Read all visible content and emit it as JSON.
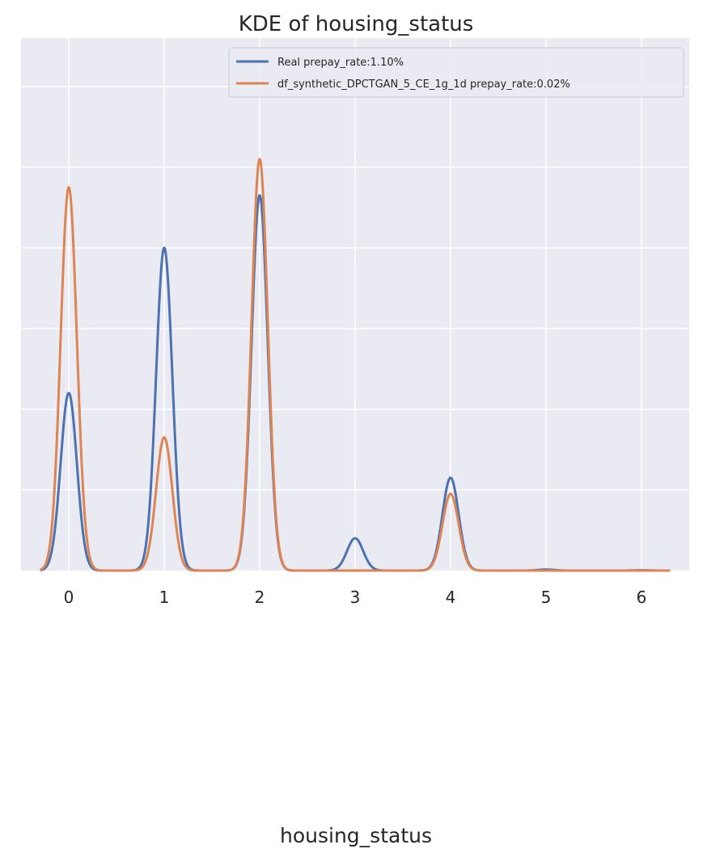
{
  "chart_data": {
    "type": "line",
    "title": "KDE of housing_status",
    "xlabel": "housing_status",
    "ylabel": "",
    "xlim": [
      -0.5,
      6.5
    ],
    "ylim": [
      0,
      1.32
    ],
    "x_ticks": [
      0,
      1,
      2,
      3,
      4,
      5,
      6
    ],
    "x_tick_labels": [
      "0",
      "1",
      "2",
      "3",
      "4",
      "5",
      "6"
    ],
    "y_grid_values": [
      0.2,
      0.4,
      0.6,
      0.8,
      1.0,
      1.2
    ],
    "grid": true,
    "background_color": "#eaeaf2",
    "grid_color": "#ffffff",
    "legend_position": "top-right",
    "kde_bandwidth": 0.085,
    "x_range": [
      -0.3,
      6.3
    ],
    "series": [
      {
        "name": "Real prepay_rate:1.10%",
        "color": "#4c72b0",
        "peaks": [
          {
            "x": 0,
            "y": 0.44
          },
          {
            "x": 1,
            "y": 0.8
          },
          {
            "x": 2,
            "y": 0.93
          },
          {
            "x": 3,
            "y": 0.08
          },
          {
            "x": 4,
            "y": 0.23
          },
          {
            "x": 5,
            "y": 0.0025
          },
          {
            "x": 6,
            "y": 0.0008
          }
        ]
      },
      {
        "name": "df_synthetic_DPCTGAN_5_CE_1g_1d prepay_rate:0.02%",
        "color": "#dd8452",
        "peaks": [
          {
            "x": 0,
            "y": 0.95
          },
          {
            "x": 1,
            "y": 0.33
          },
          {
            "x": 2,
            "y": 1.02
          },
          {
            "x": 4,
            "y": 0.19
          }
        ]
      }
    ]
  }
}
